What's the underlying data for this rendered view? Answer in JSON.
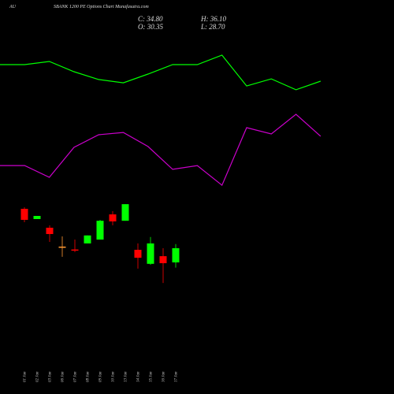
{
  "chart_data": [
    {
      "type": "candlestick",
      "title": "AU",
      "subtitle": "SBANK 1200 PE Options Chart Munafasutra.com",
      "ohlc_labels": [
        "C: 34.80",
        "H: 36.10",
        "O: 30.35",
        "L: 28.70"
      ],
      "categories": [
        "01 Jan",
        "02 Jan",
        "03 Jan",
        "06 Jan",
        "07 Jan",
        "08 Jan",
        "09 Jan",
        "10 Jan",
        "13 Jan",
        "14 Jan",
        "15 Jan",
        "16 Jan",
        "17 Jan"
      ],
      "open": [
        47.15,
        43.94,
        41.22,
        35.3,
        34.4,
        36.3,
        37.5,
        45.4,
        43.4,
        34.3,
        29.9,
        32.3,
        30.35
      ],
      "high": [
        47.64,
        44.92,
        41.96,
        38.5,
        37.5,
        38.8,
        43.7,
        46.4,
        48.6,
        36.3,
        38.3,
        34.8,
        36.1
      ],
      "low": [
        42.95,
        43.94,
        36.78,
        32.1,
        33.6,
        36.3,
        37.5,
        42.0,
        43.4,
        28.4,
        29.6,
        23.9,
        28.7
      ],
      "close": [
        43.69,
        44.92,
        39.24,
        35.3,
        34.2,
        38.8,
        43.4,
        43.2,
        48.6,
        31.8,
        36.3,
        30.1,
        34.8
      ],
      "up_color": "#00ff00",
      "down_color": "#ff0000",
      "flat_color": "#ff9933",
      "ylim": [
        -10.9,
        112.6
      ]
    },
    {
      "type": "line",
      "series": [
        {
          "color": "#00ff00",
          "values": [
            80,
            80,
            81.9,
            75.7,
            71,
            69,
            74.3,
            80,
            80,
            85.7,
            67.1,
            71.4,
            64.8,
            70
          ]
        },
        {
          "color": "#cc00cc",
          "values": [
            19,
            19,
            11.9,
            30,
            37.6,
            39,
            30.5,
            16.7,
            19,
            7.1,
            41.9,
            38.1,
            50,
            36.7
          ]
        }
      ],
      "ylim": [
        0,
        100
      ]
    }
  ]
}
